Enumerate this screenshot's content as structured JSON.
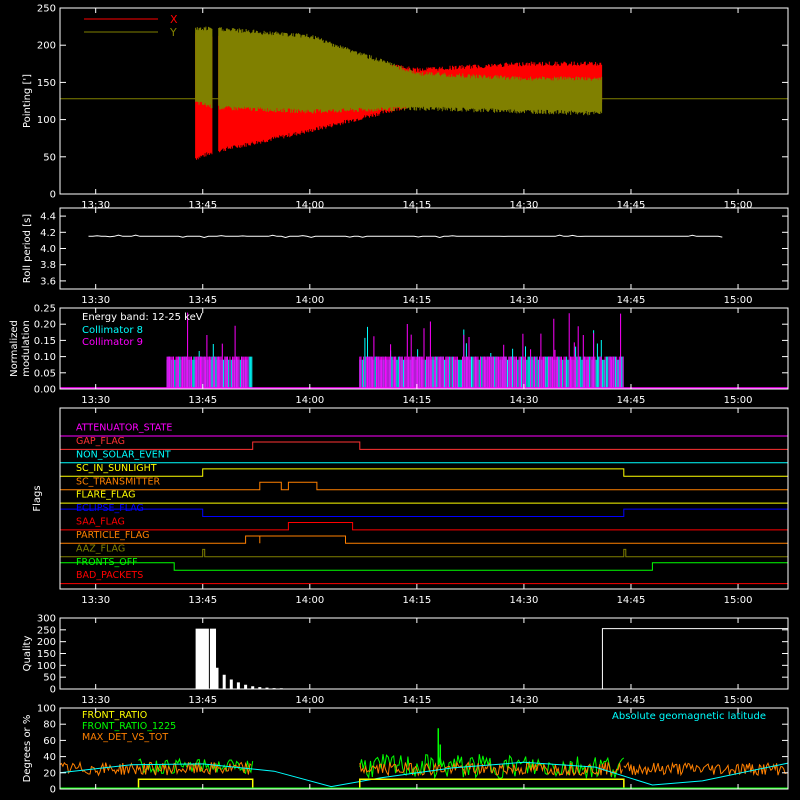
{
  "time_ticks": [
    "13:30",
    "13:45",
    "14:00",
    "14:15",
    "14:30",
    "14:45",
    "15:00"
  ],
  "colors": {
    "x": "#ff0000",
    "y": "#808000",
    "collimator8": "#00ffff",
    "collimator9": "#ff00ff",
    "attenuator": "#ff00ff",
    "gap": "#ff3333",
    "non_solar": "#00ffff",
    "sunlight": "#ffff00",
    "transmitter": "#ff8000",
    "flare": "#ffff00",
    "eclipse": "#0000ff",
    "saa": "#ff0000",
    "particle": "#ff8000",
    "aaz": "#808000",
    "fronts_off": "#00ff00",
    "bad_packets": "#ff0000",
    "front_ratio": "#ffff00",
    "front_ratio_1225": "#00ff00",
    "max_det": "#ff8000",
    "geomag": "#00ffff"
  },
  "chart_data": [
    {
      "type": "area",
      "ylabel": "Pointing [']",
      "yticks": [
        "0",
        "50",
        "100",
        "150",
        "200",
        "250"
      ],
      "ylim": [
        0,
        250
      ],
      "xlim": [
        "13:25",
        "15:07"
      ],
      "legend": [
        {
          "name": "X",
          "color": "#ff0000"
        },
        {
          "name": "Y",
          "color": "#808000"
        }
      ],
      "reference_line": 128,
      "series": [
        {
          "name": "X",
          "envelope": [
            {
              "t": "13:44",
              "min": 45,
              "max": 220
            },
            {
              "t": "13:47",
              "min": 55,
              "max": 215
            },
            {
              "t": "14:00",
              "min": 82,
              "max": 190
            },
            {
              "t": "14:15",
              "min": 118,
              "max": 170
            },
            {
              "t": "14:30",
              "min": 120,
              "max": 178
            },
            {
              "t": "14:41",
              "min": 118,
              "max": 178
            }
          ]
        },
        {
          "name": "Y",
          "envelope": [
            {
              "t": "13:44",
              "min": 120,
              "max": 225
            },
            {
              "t": "13:47",
              "min": 113,
              "max": 225
            },
            {
              "t": "14:00",
              "min": 108,
              "max": 215
            },
            {
              "t": "14:15",
              "min": 112,
              "max": 165
            },
            {
              "t": "14:30",
              "min": 108,
              "max": 158
            },
            {
              "t": "14:41",
              "min": 105,
              "max": 158
            }
          ]
        }
      ]
    },
    {
      "type": "line",
      "ylabel": "Roll period [s]",
      "yticks": [
        "3.6",
        "3.8",
        "4.0",
        "4.2",
        "4.4"
      ],
      "ylim": [
        3.5,
        4.5
      ],
      "series": [
        {
          "values": [
            4.15
          ]
        }
      ]
    },
    {
      "type": "bar",
      "ylabel": "Normalized modulation",
      "yticks": [
        "0.00",
        "0.05",
        "0.10",
        "0.15",
        "0.20",
        "0.25"
      ],
      "ylim": [
        0,
        0.25
      ],
      "annotation": "Energy band: 12-25 keV",
      "legend": [
        {
          "name": "Collimator 8",
          "color": "#00ffff"
        },
        {
          "name": "Collimator 9",
          "color": "#ff00ff"
        }
      ],
      "active_intervals": [
        [
          "13:40",
          "13:52"
        ],
        [
          "14:07",
          "14:44"
        ]
      ],
      "baseline_value": 0.1
    },
    {
      "type": "line",
      "ylabel": "Flags",
      "flags": [
        {
          "name": "ATTENUATOR_STATE",
          "color": "#ff00ff",
          "high": []
        },
        {
          "name": "GAP_FLAG",
          "color": "#ff3333",
          "high": [
            [
              "13:52",
              "14:07"
            ]
          ]
        },
        {
          "name": "NON_SOLAR_EVENT",
          "color": "#00ffff",
          "high": []
        },
        {
          "name": "SC_IN_SUNLIGHT",
          "color": "#ffff00",
          "high": [
            [
              "13:45",
              "14:44"
            ]
          ]
        },
        {
          "name": "SC_TRANSMITTER",
          "color": "#ff8000",
          "high": [
            [
              "13:53",
              "13:56"
            ],
            [
              "13:57",
              "14:01"
            ]
          ]
        },
        {
          "name": "FLARE_FLAG",
          "color": "#ffff00",
          "high": []
        },
        {
          "name": "ECLIPSE_FLAG",
          "color": "#0000ff",
          "high": [
            [
              "13:25",
              "13:45"
            ],
            [
              "14:44",
              "15:07"
            ]
          ]
        },
        {
          "name": "SAA_FLAG",
          "color": "#ff0000",
          "high": [
            [
              "13:57",
              "14:06"
            ]
          ]
        },
        {
          "name": "PARTICLE_FLAG",
          "color": "#ff8000",
          "high": [
            [
              "13:51",
              "13:53"
            ],
            [
              "13:53",
              "14:05"
            ]
          ]
        },
        {
          "name": "AAZ_FLAG",
          "color": "#808000",
          "high": [
            [
              "13:45",
              "13:45"
            ],
            [
              "14:44",
              "14:44"
            ]
          ]
        },
        {
          "name": "FRONTS_OFF",
          "color": "#00ff00",
          "high": [
            [
              "13:25",
              "13:41"
            ],
            [
              "14:48",
              "15:07"
            ]
          ]
        },
        {
          "name": "BAD_PACKETS",
          "color": "#ff0000",
          "high": []
        }
      ]
    },
    {
      "type": "bar",
      "ylabel": "Quality",
      "yticks": [
        "0",
        "50",
        "100",
        "150",
        "200",
        "250",
        "300"
      ],
      "ylim": [
        0,
        300
      ],
      "blocks": [
        {
          "start": "13:44",
          "end": "13:46",
          "value": 255
        },
        {
          "start": "13:46",
          "end": "13:47",
          "value": 255
        },
        {
          "start": "14:41",
          "end": "15:07",
          "value": 255
        }
      ],
      "decay": [
        {
          "t": "13:47",
          "value": 90
        },
        {
          "t": "13:48",
          "value": 60
        },
        {
          "t": "13:49",
          "value": 40
        },
        {
          "t": "13:50",
          "value": 28
        },
        {
          "t": "13:51",
          "value": 18
        },
        {
          "t": "13:52",
          "value": 12
        },
        {
          "t": "13:53",
          "value": 8
        },
        {
          "t": "13:54",
          "value": 6
        },
        {
          "t": "13:55",
          "value": 4
        },
        {
          "t": "13:56",
          "value": 3
        },
        {
          "t": "13:57",
          "value": 2
        },
        {
          "t": "13:58",
          "value": 1
        }
      ]
    },
    {
      "type": "line",
      "ylabel": "Degrees or %",
      "yticks": [
        "0",
        "20",
        "40",
        "60",
        "80",
        "100"
      ],
      "ylim": [
        0,
        100
      ],
      "legend_left": [
        {
          "name": "FRONT_RATIO",
          "color": "#ffff00"
        },
        {
          "name": "FRONT_RATIO_1225",
          "color": "#00ff00"
        },
        {
          "name": "MAX_DET_VS_TOT",
          "color": "#ff8000"
        }
      ],
      "legend_right": [
        {
          "name": "Absolute geomagnetic latitude",
          "color": "#00ffff"
        }
      ],
      "active_intervals": [
        [
          "13:25",
          "13:52"
        ],
        [
          "14:07",
          "14:44"
        ],
        [
          "14:44",
          "15:07"
        ]
      ],
      "front_ratio_intervals": [
        [
          "13:36",
          "13:52"
        ],
        [
          "14:07",
          "14:44"
        ]
      ],
      "front_ratio": 12,
      "front_ratio_1225": 28,
      "max_det": 25,
      "geomag": [
        {
          "t": "13:25",
          "value": 20
        },
        {
          "t": "13:35",
          "value": 30
        },
        {
          "t": "13:45",
          "value": 31
        },
        {
          "t": "13:55",
          "value": 22
        },
        {
          "t": "14:03",
          "value": 3
        },
        {
          "t": "14:10",
          "value": 14
        },
        {
          "t": "14:20",
          "value": 26
        },
        {
          "t": "14:30",
          "value": 33
        },
        {
          "t": "14:40",
          "value": 27
        },
        {
          "t": "14:48",
          "value": 5
        },
        {
          "t": "14:55",
          "value": 10
        },
        {
          "t": "15:07",
          "value": 32
        }
      ],
      "spike": {
        "t": "14:18",
        "value": 75
      }
    }
  ]
}
